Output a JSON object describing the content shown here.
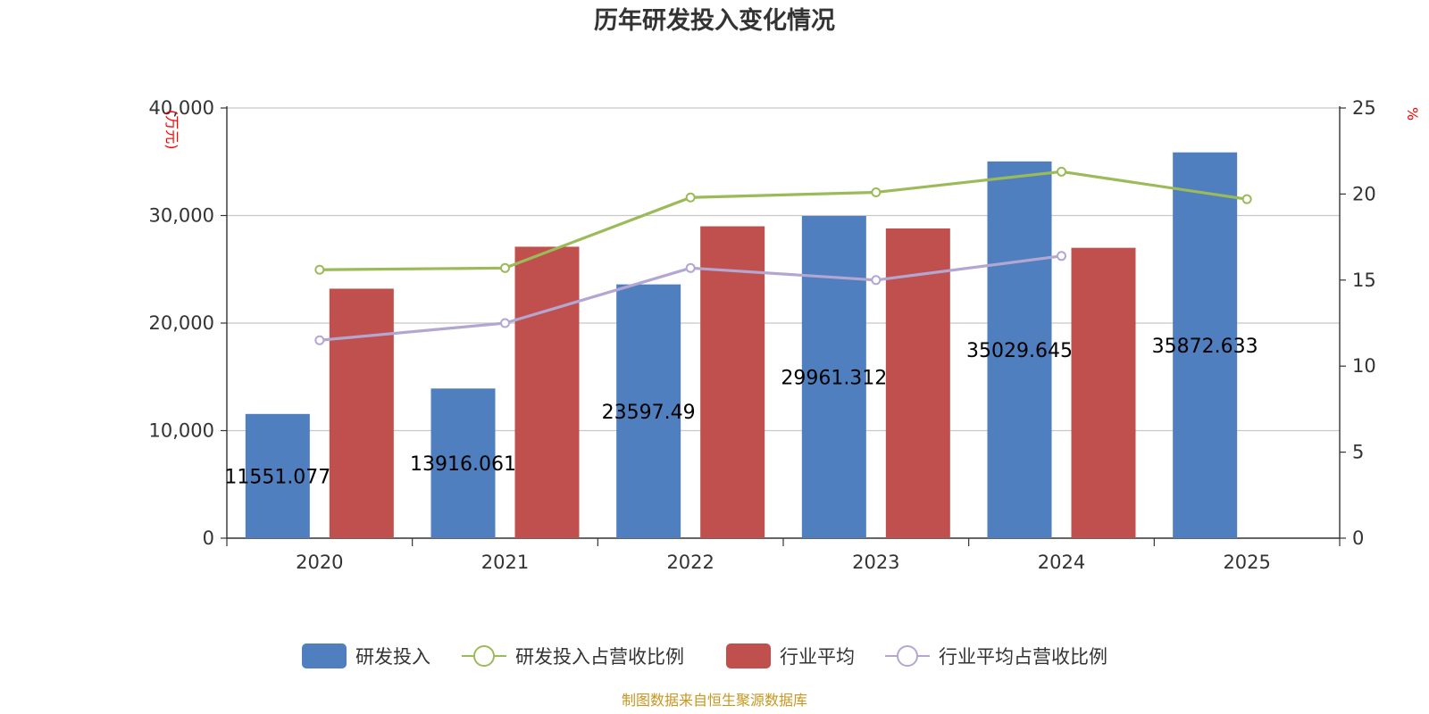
{
  "chart_data": {
    "type": "bar",
    "title": "历年研发投入变化情况",
    "categories": [
      "2020",
      "2021",
      "2022",
      "2023",
      "2024",
      "2025"
    ],
    "left_axis": {
      "unit": "(万元)",
      "ylim": [
        0,
        40000
      ],
      "ticks": [
        "0",
        "10,000",
        "20,000",
        "30,000",
        "40,000"
      ],
      "tick_values": [
        0,
        10000,
        20000,
        30000,
        40000
      ]
    },
    "right_axis": {
      "unit": "%",
      "ylim": [
        0,
        25
      ],
      "ticks": [
        "0",
        "5",
        "10",
        "15",
        "20",
        "25"
      ],
      "tick_values": [
        0,
        5,
        10,
        15,
        20,
        25
      ]
    },
    "grid": true,
    "legend_position": "bottom",
    "series": [
      {
        "name": "研发投入",
        "kind": "bar",
        "axis": "left",
        "color": "#4f7fbf",
        "values": [
          11551.077,
          13916.061,
          23597.49,
          29961.312,
          35029.645,
          35872.633
        ],
        "labels": [
          "11551.077",
          "13916.061",
          "23597.49",
          "29961.312",
          "35029.645",
          "35872.633"
        ]
      },
      {
        "name": "研发投入占营收比例",
        "kind": "line",
        "axis": "right",
        "color": "#9bbb59",
        "values": [
          15.6,
          15.7,
          19.8,
          20.1,
          21.3,
          19.7
        ]
      },
      {
        "name": "行业平均",
        "kind": "bar",
        "axis": "left",
        "color": "#c0504d",
        "values": [
          23200,
          27100,
          29000,
          28800,
          27000,
          null
        ]
      },
      {
        "name": "行业平均占营收比例",
        "kind": "line",
        "axis": "right",
        "color": "#b3a7d2",
        "values": [
          11.5,
          12.5,
          15.7,
          15.0,
          16.4,
          null
        ]
      }
    ],
    "source": "制图数据来自恒生聚源数据库"
  }
}
